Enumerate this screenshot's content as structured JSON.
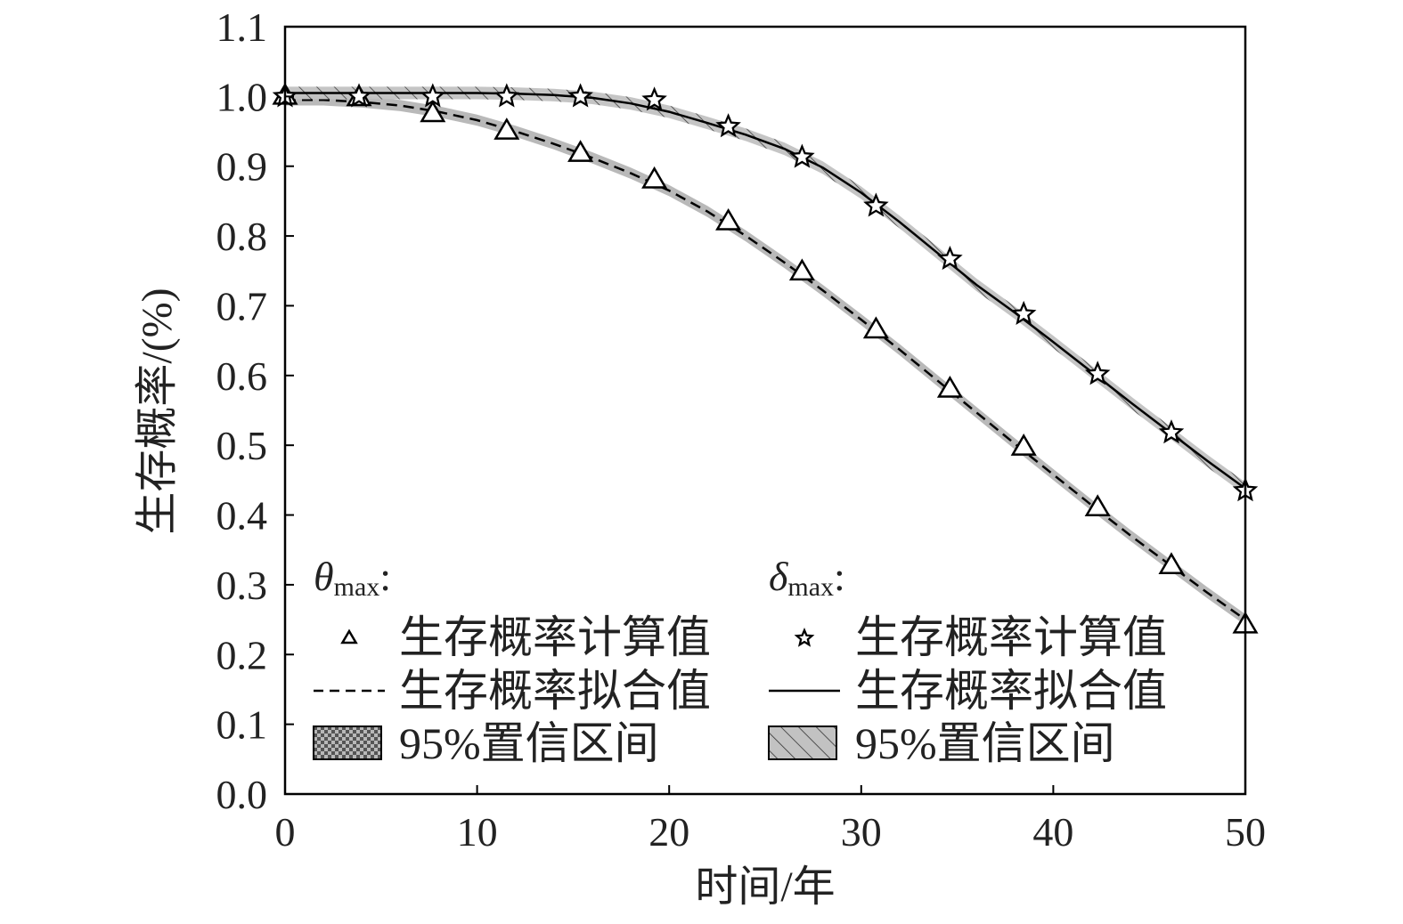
{
  "chart_data": {
    "type": "line",
    "xlabel": "时间/年",
    "ylabel": "生存概率/(%)",
    "xlim": [
      0,
      50
    ],
    "ylim": [
      0,
      1.1
    ],
    "x_ticks": [
      "0",
      "10",
      "20",
      "30",
      "40",
      "50"
    ],
    "y_ticks": [
      "0.0",
      "0.1",
      "0.2",
      "0.3",
      "0.4",
      "0.5",
      "0.6",
      "0.7",
      "0.8",
      "0.9",
      "1.0",
      "1.1"
    ],
    "grid": false,
    "legend_position": "lower-left, two columns",
    "legend": {
      "groups": [
        {
          "head_symbol": "θ",
          "head_sub": "max",
          "head_colon": ":",
          "computed_label": "生存概率计算值",
          "fitted_label": "生存概率拟合值",
          "ci_label": "95%置信区间"
        },
        {
          "head_symbol": "δ",
          "head_sub": "max",
          "head_colon": ":",
          "computed_label": "生存概率计算值",
          "fitted_label": "生存概率拟合值",
          "ci_label": "95%置信区间"
        }
      ]
    },
    "series": [
      {
        "param": "theta_max",
        "marker": "triangle",
        "line_style": "dashed",
        "computed": {
          "x": [
            0,
            3.85,
            7.69,
            11.54,
            15.38,
            19.23,
            23.08,
            26.92,
            30.77,
            34.62,
            38.46,
            42.31,
            46.15,
            50
          ],
          "y": [
            1.0,
            0.998,
            0.975,
            0.95,
            0.918,
            0.88,
            0.82,
            0.748,
            0.665,
            0.58,
            0.497,
            0.41,
            0.327,
            0.242
          ]
        },
        "fitted": {
          "x": [
            0,
            2,
            4,
            6,
            8,
            10,
            12,
            14,
            16,
            18,
            20,
            22,
            24,
            26,
            28,
            30,
            32,
            34,
            36,
            38,
            40,
            42,
            44,
            46,
            48,
            50
          ],
          "y": [
            0.995,
            0.995,
            0.992,
            0.987,
            0.978,
            0.966,
            0.95,
            0.932,
            0.912,
            0.89,
            0.865,
            0.835,
            0.8,
            0.762,
            0.722,
            0.68,
            0.637,
            0.592,
            0.547,
            0.502,
            0.458,
            0.414,
            0.371,
            0.33,
            0.289,
            0.25
          ]
        },
        "ci_halfwidth": 0.008
      },
      {
        "param": "delta_max",
        "marker": "star",
        "line_style": "solid",
        "computed": {
          "x": [
            0,
            3.85,
            7.69,
            11.54,
            15.38,
            19.23,
            23.08,
            26.92,
            30.77,
            34.62,
            38.46,
            42.31,
            46.15,
            50
          ],
          "y": [
            1.0,
            1.0,
            1.0,
            1.0,
            1.0,
            0.995,
            0.957,
            0.913,
            0.843,
            0.767,
            0.688,
            0.602,
            0.518,
            0.435
          ]
        },
        "fitted": {
          "x": [
            0,
            2,
            4,
            6,
            8,
            10,
            12,
            14,
            16,
            18,
            20,
            22,
            24,
            26,
            28,
            30,
            32,
            34,
            36,
            38,
            40,
            42,
            44,
            46,
            48,
            50
          ],
          "y": [
            1.005,
            1.005,
            1.005,
            1.005,
            1.005,
            1.005,
            1.004,
            1.002,
            0.998,
            0.99,
            0.978,
            0.962,
            0.945,
            0.925,
            0.898,
            0.862,
            0.82,
            0.775,
            0.73,
            0.69,
            0.648,
            0.605,
            0.562,
            0.52,
            0.478,
            0.438
          ]
        },
        "ci_halfwidth": 0.009
      }
    ]
  }
}
